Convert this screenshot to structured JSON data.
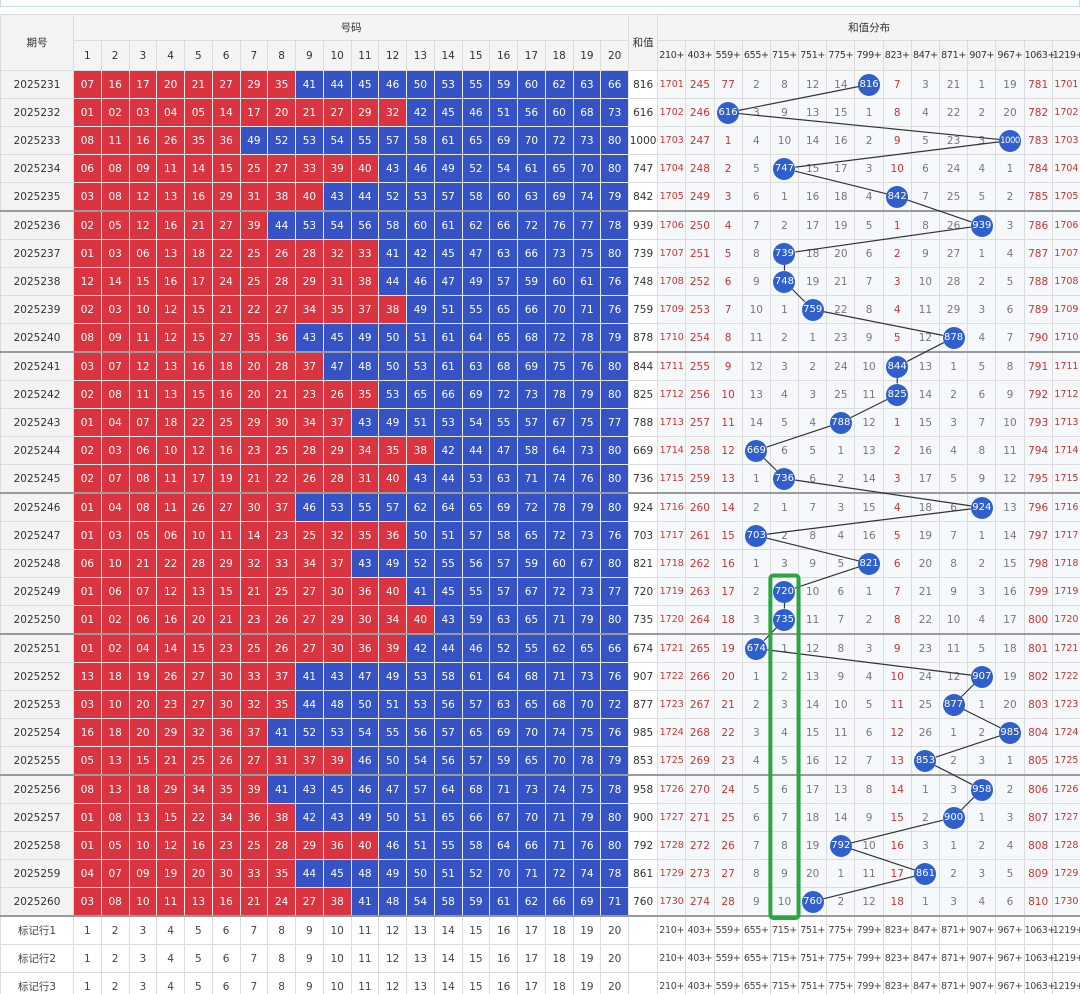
{
  "header": {
    "period": "期号",
    "numbers_group": "号码",
    "sum": "和值",
    "distribution_group": "和值分布",
    "number_columns": [
      1,
      2,
      3,
      4,
      5,
      6,
      7,
      8,
      9,
      10,
      11,
      12,
      13,
      14,
      15,
      16,
      17,
      18,
      19,
      20
    ],
    "distribution_columns": [
      "210+",
      "403+",
      "559+",
      "655+",
      "715+",
      "751+",
      "775+",
      "799+",
      "823+",
      "847+",
      "871+",
      "907+",
      "967+",
      "1063+",
      "1219+"
    ]
  },
  "zone_colors": {
    "split": 40,
    "low": "#d9343f",
    "high": "#3553c4",
    "hit": "#2f5fcc"
  },
  "distribution_colors": [
    "#d0312d",
    "#d0312d",
    "#d0312d",
    "#777777",
    "#777777",
    "#777777",
    "#777777",
    "#777777",
    "#d0312d",
    "#777777",
    "#777777",
    "#777777",
    "#777777",
    "#d0312d",
    "#d0312d"
  ],
  "rows": [
    {
      "period": "2025231",
      "numbers": [
        "07",
        "16",
        "17",
        "20",
        "21",
        "27",
        "29",
        "35",
        "41",
        "44",
        "45",
        "46",
        "50",
        "53",
        "55",
        "59",
        "60",
        "62",
        "63",
        "66"
      ],
      "sum": 816,
      "distribution": [
        1701,
        245,
        77,
        2,
        8,
        12,
        14,
        816,
        7,
        3,
        21,
        1,
        19,
        781,
        1701
      ]
    },
    {
      "period": "2025232",
      "numbers": [
        "01",
        "02",
        "03",
        "04",
        "05",
        "14",
        "17",
        "20",
        "21",
        "27",
        "29",
        "32",
        "42",
        "45",
        "46",
        "51",
        "56",
        "60",
        "68",
        "73"
      ],
      "sum": 616,
      "distribution": [
        1702,
        246,
        616,
        3,
        9,
        13,
        15,
        1,
        8,
        4,
        22,
        2,
        20,
        782,
        1702
      ]
    },
    {
      "period": "2025233",
      "numbers": [
        "08",
        "11",
        "16",
        "26",
        "35",
        "36",
        "49",
        "52",
        "53",
        "54",
        "55",
        "57",
        "58",
        "61",
        "65",
        "69",
        "70",
        "72",
        "73",
        "80"
      ],
      "sum": 1000,
      "distribution": [
        1703,
        247,
        1,
        4,
        10,
        14,
        16,
        2,
        9,
        5,
        23,
        3,
        1000,
        783,
        1703
      ]
    },
    {
      "period": "2025234",
      "numbers": [
        "06",
        "08",
        "09",
        "11",
        "14",
        "15",
        "25",
        "27",
        "33",
        "39",
        "40",
        "43",
        "46",
        "49",
        "52",
        "54",
        "61",
        "65",
        "70",
        "80"
      ],
      "sum": 747,
      "distribution": [
        1704,
        248,
        2,
        5,
        747,
        15,
        17,
        3,
        10,
        6,
        24,
        4,
        1,
        784,
        1704
      ]
    },
    {
      "period": "2025235",
      "numbers": [
        "03",
        "08",
        "12",
        "13",
        "16",
        "29",
        "31",
        "38",
        "40",
        "43",
        "44",
        "52",
        "53",
        "57",
        "58",
        "60",
        "63",
        "69",
        "74",
        "79"
      ],
      "sum": 842,
      "distribution": [
        1705,
        249,
        3,
        6,
        1,
        16,
        18,
        4,
        842,
        7,
        25,
        5,
        2,
        785,
        1705
      ]
    },
    {
      "period": "2025236",
      "numbers": [
        "02",
        "05",
        "12",
        "16",
        "21",
        "27",
        "39",
        "44",
        "53",
        "54",
        "56",
        "58",
        "60",
        "61",
        "62",
        "66",
        "72",
        "76",
        "77",
        "78"
      ],
      "sum": 939,
      "distribution": [
        1706,
        250,
        4,
        7,
        2,
        17,
        19,
        5,
        1,
        8,
        26,
        939,
        3,
        786,
        1706
      ]
    },
    {
      "period": "2025237",
      "numbers": [
        "01",
        "03",
        "06",
        "13",
        "18",
        "22",
        "25",
        "26",
        "28",
        "32",
        "33",
        "41",
        "42",
        "45",
        "47",
        "63",
        "66",
        "73",
        "75",
        "80"
      ],
      "sum": 739,
      "distribution": [
        1707,
        251,
        5,
        8,
        739,
        18,
        20,
        6,
        2,
        9,
        27,
        1,
        4,
        787,
        1707
      ]
    },
    {
      "period": "2025238",
      "numbers": [
        "12",
        "14",
        "15",
        "16",
        "17",
        "24",
        "25",
        "28",
        "29",
        "31",
        "38",
        "44",
        "46",
        "47",
        "49",
        "57",
        "59",
        "60",
        "61",
        "76"
      ],
      "sum": 748,
      "distribution": [
        1708,
        252,
        6,
        9,
        748,
        19,
        21,
        7,
        3,
        10,
        28,
        2,
        5,
        788,
        1708
      ]
    },
    {
      "period": "2025239",
      "numbers": [
        "02",
        "03",
        "10",
        "12",
        "15",
        "21",
        "22",
        "27",
        "34",
        "35",
        "37",
        "38",
        "49",
        "51",
        "55",
        "65",
        "66",
        "70",
        "71",
        "76"
      ],
      "sum": 759,
      "distribution": [
        1709,
        253,
        7,
        10,
        1,
        759,
        22,
        8,
        4,
        11,
        29,
        3,
        6,
        789,
        1709
      ]
    },
    {
      "period": "2025240",
      "numbers": [
        "08",
        "09",
        "11",
        "12",
        "15",
        "27",
        "35",
        "36",
        "43",
        "45",
        "49",
        "50",
        "51",
        "61",
        "64",
        "65",
        "68",
        "72",
        "78",
        "79"
      ],
      "sum": 878,
      "distribution": [
        1710,
        254,
        8,
        11,
        2,
        1,
        23,
        9,
        5,
        12,
        878,
        4,
        7,
        790,
        1710
      ]
    },
    {
      "period": "2025241",
      "numbers": [
        "03",
        "07",
        "12",
        "13",
        "16",
        "18",
        "20",
        "28",
        "37",
        "47",
        "48",
        "50",
        "53",
        "61",
        "63",
        "68",
        "69",
        "75",
        "76",
        "80"
      ],
      "sum": 844,
      "distribution": [
        1711,
        255,
        9,
        12,
        3,
        2,
        24,
        10,
        844,
        13,
        1,
        5,
        8,
        791,
        1711
      ]
    },
    {
      "period": "2025242",
      "numbers": [
        "02",
        "08",
        "11",
        "13",
        "15",
        "16",
        "20",
        "21",
        "23",
        "26",
        "35",
        "53",
        "65",
        "66",
        "69",
        "72",
        "73",
        "78",
        "79",
        "80"
      ],
      "sum": 825,
      "distribution": [
        1712,
        256,
        10,
        13,
        4,
        3,
        25,
        11,
        825,
        14,
        2,
        6,
        9,
        792,
        1712
      ]
    },
    {
      "period": "2025243",
      "numbers": [
        "01",
        "04",
        "07",
        "18",
        "22",
        "25",
        "29",
        "30",
        "34",
        "37",
        "43",
        "49",
        "51",
        "53",
        "54",
        "55",
        "57",
        "67",
        "75",
        "77"
      ],
      "sum": 788,
      "distribution": [
        1713,
        257,
        11,
        14,
        5,
        4,
        788,
        12,
        1,
        15,
        3,
        7,
        10,
        793,
        1713
      ]
    },
    {
      "period": "2025244",
      "numbers": [
        "02",
        "03",
        "06",
        "10",
        "12",
        "16",
        "23",
        "25",
        "28",
        "29",
        "34",
        "35",
        "38",
        "42",
        "44",
        "47",
        "58",
        "64",
        "73",
        "80"
      ],
      "sum": 669,
      "distribution": [
        1714,
        258,
        12,
        669,
        6,
        5,
        1,
        13,
        2,
        16,
        4,
        8,
        11,
        794,
        1714
      ]
    },
    {
      "period": "2025245",
      "numbers": [
        "02",
        "07",
        "08",
        "11",
        "17",
        "19",
        "21",
        "22",
        "26",
        "28",
        "31",
        "40",
        "43",
        "44",
        "53",
        "63",
        "71",
        "74",
        "76",
        "80"
      ],
      "sum": 736,
      "distribution": [
        1715,
        259,
        13,
        1,
        736,
        6,
        2,
        14,
        3,
        17,
        5,
        9,
        12,
        795,
        1715
      ]
    },
    {
      "period": "2025246",
      "numbers": [
        "01",
        "04",
        "08",
        "11",
        "26",
        "27",
        "30",
        "37",
        "46",
        "53",
        "55",
        "57",
        "62",
        "64",
        "65",
        "69",
        "72",
        "78",
        "79",
        "80"
      ],
      "sum": 924,
      "distribution": [
        1716,
        260,
        14,
        2,
        1,
        7,
        3,
        15,
        4,
        18,
        6,
        924,
        13,
        796,
        1716
      ]
    },
    {
      "period": "2025247",
      "numbers": [
        "01",
        "03",
        "05",
        "06",
        "10",
        "11",
        "14",
        "23",
        "25",
        "32",
        "35",
        "36",
        "50",
        "51",
        "57",
        "58",
        "65",
        "72",
        "73",
        "76"
      ],
      "sum": 703,
      "distribution": [
        1717,
        261,
        15,
        703,
        2,
        8,
        4,
        16,
        5,
        19,
        7,
        1,
        14,
        797,
        1717
      ]
    },
    {
      "period": "2025248",
      "numbers": [
        "06",
        "10",
        "21",
        "22",
        "28",
        "29",
        "32",
        "33",
        "34",
        "37",
        "43",
        "49",
        "52",
        "55",
        "56",
        "57",
        "59",
        "60",
        "67",
        "80"
      ],
      "sum": 821,
      "distribution": [
        1718,
        262,
        16,
        1,
        3,
        9,
        5,
        821,
        6,
        20,
        8,
        2,
        15,
        798,
        1718
      ]
    },
    {
      "period": "2025249",
      "numbers": [
        "01",
        "06",
        "07",
        "12",
        "13",
        "15",
        "21",
        "25",
        "27",
        "30",
        "36",
        "40",
        "41",
        "45",
        "55",
        "57",
        "67",
        "72",
        "73",
        "77"
      ],
      "sum": 720,
      "distribution": [
        1719,
        263,
        17,
        2,
        720,
        10,
        6,
        1,
        7,
        21,
        9,
        3,
        16,
        799,
        1719
      ]
    },
    {
      "period": "2025250",
      "numbers": [
        "01",
        "02",
        "06",
        "16",
        "20",
        "21",
        "23",
        "26",
        "27",
        "29",
        "30",
        "34",
        "40",
        "43",
        "59",
        "63",
        "65",
        "71",
        "79",
        "80"
      ],
      "sum": 735,
      "distribution": [
        1720,
        264,
        18,
        3,
        735,
        11,
        7,
        2,
        8,
        22,
        10,
        4,
        17,
        800,
        1720
      ]
    },
    {
      "period": "2025251",
      "numbers": [
        "01",
        "02",
        "04",
        "14",
        "15",
        "23",
        "25",
        "26",
        "27",
        "30",
        "36",
        "39",
        "42",
        "44",
        "46",
        "52",
        "55",
        "62",
        "65",
        "66"
      ],
      "sum": 674,
      "distribution": [
        1721,
        265,
        19,
        674,
        1,
        12,
        8,
        3,
        9,
        23,
        11,
        5,
        18,
        801,
        1721
      ]
    },
    {
      "period": "2025252",
      "numbers": [
        "13",
        "18",
        "19",
        "26",
        "27",
        "30",
        "33",
        "37",
        "41",
        "43",
        "47",
        "49",
        "53",
        "58",
        "61",
        "64",
        "68",
        "71",
        "73",
        "76"
      ],
      "sum": 907,
      "distribution": [
        1722,
        266,
        20,
        1,
        2,
        13,
        9,
        4,
        10,
        24,
        12,
        907,
        19,
        802,
        1722
      ]
    },
    {
      "period": "2025253",
      "numbers": [
        "03",
        "10",
        "20",
        "23",
        "27",
        "30",
        "32",
        "35",
        "44",
        "48",
        "50",
        "51",
        "53",
        "56",
        "57",
        "63",
        "65",
        "68",
        "70",
        "72"
      ],
      "sum": 877,
      "distribution": [
        1723,
        267,
        21,
        2,
        3,
        14,
        10,
        5,
        11,
        25,
        877,
        1,
        20,
        803,
        1723
      ]
    },
    {
      "period": "2025254",
      "numbers": [
        "16",
        "18",
        "20",
        "29",
        "32",
        "36",
        "37",
        "41",
        "52",
        "53",
        "54",
        "55",
        "56",
        "57",
        "65",
        "69",
        "70",
        "74",
        "75",
        "76"
      ],
      "sum": 985,
      "distribution": [
        1724,
        268,
        22,
        3,
        4,
        15,
        11,
        6,
        12,
        26,
        1,
        2,
        985,
        804,
        1724
      ]
    },
    {
      "period": "2025255",
      "numbers": [
        "05",
        "13",
        "15",
        "21",
        "25",
        "26",
        "27",
        "31",
        "37",
        "39",
        "46",
        "50",
        "54",
        "56",
        "57",
        "59",
        "65",
        "70",
        "78",
        "79"
      ],
      "sum": 853,
      "distribution": [
        1725,
        269,
        23,
        4,
        5,
        16,
        12,
        7,
        13,
        853,
        2,
        3,
        1,
        805,
        1725
      ]
    },
    {
      "period": "2025256",
      "numbers": [
        "08",
        "13",
        "18",
        "29",
        "34",
        "35",
        "39",
        "41",
        "43",
        "45",
        "46",
        "47",
        "57",
        "64",
        "68",
        "71",
        "73",
        "74",
        "75",
        "78"
      ],
      "sum": 958,
      "distribution": [
        1726,
        270,
        24,
        5,
        6,
        17,
        13,
        8,
        14,
        1,
        3,
        958,
        2,
        806,
        1726
      ]
    },
    {
      "period": "2025257",
      "numbers": [
        "01",
        "08",
        "13",
        "15",
        "22",
        "34",
        "36",
        "38",
        "42",
        "43",
        "49",
        "50",
        "51",
        "65",
        "66",
        "67",
        "70",
        "71",
        "79",
        "80"
      ],
      "sum": 900,
      "distribution": [
        1727,
        271,
        25,
        6,
        7,
        18,
        14,
        9,
        15,
        2,
        900,
        1,
        3,
        807,
        1727
      ]
    },
    {
      "period": "2025258",
      "numbers": [
        "01",
        "05",
        "10",
        "12",
        "16",
        "23",
        "25",
        "28",
        "29",
        "36",
        "40",
        "46",
        "51",
        "55",
        "58",
        "64",
        "66",
        "71",
        "76",
        "80"
      ],
      "sum": 792,
      "distribution": [
        1728,
        272,
        26,
        7,
        8,
        19,
        792,
        10,
        16,
        3,
        1,
        2,
        4,
        808,
        1728
      ]
    },
    {
      "period": "2025259",
      "numbers": [
        "04",
        "07",
        "09",
        "19",
        "20",
        "30",
        "33",
        "35",
        "44",
        "45",
        "48",
        "49",
        "50",
        "51",
        "52",
        "70",
        "71",
        "72",
        "74",
        "78"
      ],
      "sum": 861,
      "distribution": [
        1729,
        273,
        27,
        8,
        9,
        20,
        1,
        11,
        17,
        861,
        2,
        3,
        5,
        809,
        1729
      ]
    },
    {
      "period": "2025260",
      "numbers": [
        "03",
        "08",
        "10",
        "11",
        "13",
        "16",
        "21",
        "24",
        "27",
        "38",
        "41",
        "48",
        "54",
        "58",
        "59",
        "61",
        "62",
        "66",
        "69",
        "71"
      ],
      "sum": 760,
      "distribution": [
        1730,
        274,
        28,
        9,
        10,
        760,
        2,
        12,
        18,
        1,
        3,
        4,
        6,
        810,
        1730
      ]
    }
  ],
  "marker_rows": [
    "标记行1",
    "标记行2",
    "标记行3"
  ]
}
